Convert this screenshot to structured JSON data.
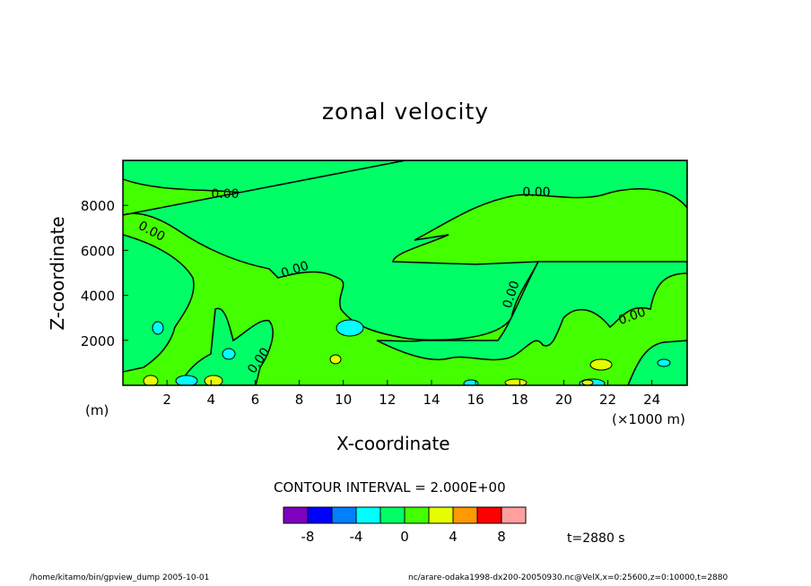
{
  "colors": {
    "bg_level_0_2": "#44ff00",
    "level_m2_0": "#00ff66",
    "level_m6_m4": "#00ffff",
    "level_2_4": "#e5ff00",
    "contour_line": "#000000"
  },
  "chart_data": {
    "type": "contour",
    "title": "zonal velocity",
    "xlabel": "X-coordinate",
    "ylabel": "Z-coordinate",
    "x_unit": "(×1000 m)",
    "y_unit": "(m)",
    "xlim": [
      0,
      25.6
    ],
    "ylim": [
      0,
      10000
    ],
    "x_ticks": [
      2,
      4,
      6,
      8,
      10,
      12,
      14,
      16,
      18,
      20,
      22,
      24
    ],
    "y_ticks": [
      2000,
      4000,
      6000,
      8000
    ],
    "contour_interval_label": "CONTOUR INTERVAL = 2.000E+00",
    "contour_labels": [
      "0.00",
      "0.00",
      "0.00",
      "0.00",
      "0.00",
      "0.00",
      "0.00"
    ],
    "colorbar": {
      "levels": [
        -10,
        -8,
        -6,
        -4,
        -2,
        0,
        2,
        4,
        6,
        8,
        10
      ],
      "colors": [
        "#7f00bf",
        "#0000ff",
        "#007fff",
        "#00ffff",
        "#00ff66",
        "#44ff00",
        "#e5ff00",
        "#ff9900",
        "#ff0000",
        "#ff9f9f"
      ],
      "tick_labels": [
        "-8",
        "-4",
        "0",
        "4",
        "8"
      ],
      "tick_values": [
        -8,
        -4,
        0,
        4,
        8
      ]
    },
    "time_label": "t=2880 s"
  },
  "footer": {
    "left": "/home/kitamo/bin/gpview_dump  2005-10-01",
    "right": "nc/arare-odaka1998-dx200-20050930.nc@VelX,x=0:25600,z=0:10000,t=2880"
  }
}
